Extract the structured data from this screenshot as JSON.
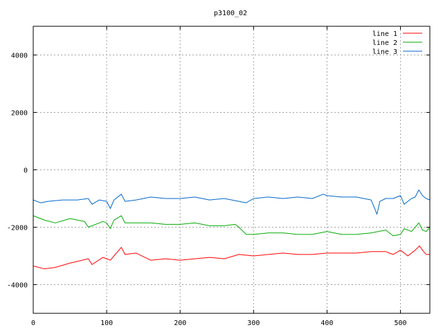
{
  "chart_data": {
    "type": "line",
    "title": "p3100_02",
    "xlabel": "",
    "ylabel": "",
    "xlim": [
      0,
      540
    ],
    "ylim": [
      -5000,
      5000
    ],
    "xticks": [
      0,
      100,
      200,
      300,
      400,
      500
    ],
    "yticks": [
      -4000,
      -2000,
      0,
      2000,
      4000
    ],
    "grid": true,
    "legend_position": "top-right",
    "series": [
      {
        "name": "line 1",
        "color": "#ff0000",
        "x": [
          0,
          15,
          30,
          50,
          75,
          80,
          95,
          105,
          110,
          120,
          125,
          140,
          160,
          180,
          200,
          220,
          240,
          260,
          280,
          300,
          320,
          340,
          360,
          380,
          400,
          420,
          440,
          460,
          480,
          490,
          500,
          510,
          520,
          526,
          530,
          535,
          540
        ],
        "y": [
          -3350,
          -3450,
          -3400,
          -3250,
          -3100,
          -3300,
          -3050,
          -3150,
          -3000,
          -2700,
          -2950,
          -2900,
          -3150,
          -3100,
          -3150,
          -3100,
          -3050,
          -3100,
          -2950,
          -3000,
          -2950,
          -2900,
          -2950,
          -2950,
          -2900,
          -2900,
          -2900,
          -2850,
          -2850,
          -2950,
          -2800,
          -3000,
          -2800,
          -2650,
          -2800,
          -2950,
          -2950
        ]
      },
      {
        "name": "line 2",
        "color": "#00aa00",
        "x": [
          0,
          15,
          30,
          50,
          70,
          75,
          95,
          100,
          105,
          110,
          120,
          125,
          140,
          160,
          180,
          200,
          220,
          240,
          260,
          275,
          280,
          290,
          300,
          320,
          340,
          360,
          380,
          400,
          420,
          440,
          460,
          480,
          490,
          500,
          505,
          515,
          525,
          530,
          535,
          540
        ],
        "y": [
          -1600,
          -1750,
          -1850,
          -1700,
          -1800,
          -2000,
          -1800,
          -1850,
          -2050,
          -1750,
          -1600,
          -1850,
          -1850,
          -1850,
          -1900,
          -1900,
          -1850,
          -1950,
          -1950,
          -1900,
          -2000,
          -2250,
          -2250,
          -2200,
          -2200,
          -2250,
          -2250,
          -2150,
          -2250,
          -2250,
          -2200,
          -2100,
          -2300,
          -2250,
          -2050,
          -2150,
          -1850,
          -2100,
          -2150,
          -2000
        ]
      },
      {
        "name": "line 3",
        "color": "#0066cc",
        "x": [
          0,
          10,
          20,
          40,
          60,
          75,
          80,
          90,
          100,
          105,
          110,
          120,
          125,
          140,
          160,
          180,
          200,
          220,
          240,
          260,
          280,
          290,
          300,
          320,
          340,
          360,
          380,
          395,
          400,
          420,
          440,
          460,
          465,
          468,
          472,
          480,
          490,
          500,
          505,
          515,
          520,
          525,
          530,
          535,
          540
        ],
        "y": [
          -1050,
          -1150,
          -1100,
          -1050,
          -1050,
          -1000,
          -1200,
          -1050,
          -1100,
          -1350,
          -1050,
          -850,
          -1100,
          -1050,
          -950,
          -1000,
          -1000,
          -950,
          -1050,
          -1000,
          -1100,
          -1150,
          -1000,
          -950,
          -1000,
          -950,
          -1000,
          -850,
          -900,
          -950,
          -950,
          -1050,
          -1350,
          -1550,
          -1100,
          -1000,
          -1000,
          -900,
          -1200,
          -1000,
          -950,
          -700,
          -900,
          -1000,
          -1050
        ]
      }
    ]
  }
}
